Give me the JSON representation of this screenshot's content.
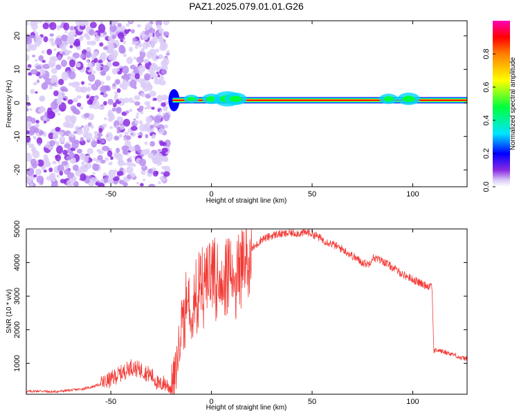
{
  "title": "PAZ1.2025.079.01.01.G26",
  "chart_data": [
    {
      "type": "heatmap",
      "xlabel": "Height of straight line (km)",
      "ylabel": "Frequency (Hz)",
      "xlim": [
        -92,
        127
      ],
      "ylim": [
        -25,
        24.5
      ],
      "xticks": [
        -50,
        0,
        50,
        100
      ],
      "yticks": [
        -20,
        -10,
        0,
        10,
        20
      ],
      "colorbar": {
        "label": "Normalized spectral amplitude",
        "range": [
          0,
          1
        ],
        "ticks": [
          0.0,
          0.2,
          0.4,
          0.6,
          0.8
        ],
        "tick_labels": [
          "0.0",
          "0.2",
          "0.4",
          "0.6",
          "0.8"
        ]
      },
      "features": {
        "noise_region_x": [
          -92,
          -20
        ],
        "noise_region_level": "0.0 to 0.2",
        "signal_line_x": [
          -20,
          127
        ],
        "signal_line_frequency_hz": 0.8,
        "signal_line_peak_level": 0.85
      }
    },
    {
      "type": "line",
      "xlabel": "Height of straight line (km)",
      "ylabel": "SNR (10 * v/v)",
      "xlim": [
        -92,
        127
      ],
      "ylim": [
        80,
        5000
      ],
      "xticks": [
        -50,
        0,
        50,
        100
      ],
      "yticks": [
        1000,
        2000,
        3000,
        4000,
        5000
      ],
      "color": "#f23a35",
      "series": [
        {
          "x": [
            -92,
            -85,
            -80,
            -75,
            -70,
            -65,
            -60,
            -55,
            -50,
            -47,
            -45,
            -43,
            -40,
            -38,
            -36,
            -34,
            -32,
            -30,
            -28,
            -26,
            -24,
            -22,
            -20,
            -18,
            -16,
            -15,
            -14,
            -12,
            -10,
            -8,
            -6,
            -4,
            -2,
            0,
            2,
            4,
            6,
            8,
            10,
            12,
            14,
            16,
            18,
            20,
            22,
            25,
            28,
            30,
            33,
            36,
            40,
            44,
            48,
            52,
            56,
            60,
            65,
            70,
            75,
            78,
            80,
            85,
            90,
            95,
            100,
            105,
            108,
            109.5,
            110.5,
            112,
            115,
            118,
            121,
            124,
            127
          ],
          "y": [
            160,
            180,
            150,
            170,
            200,
            230,
            290,
            380,
            520,
            640,
            700,
            760,
            900,
            850,
            820,
            780,
            700,
            650,
            520,
            330,
            420,
            360,
            240,
            650,
            1600,
            2200,
            2900,
            3000,
            3200,
            3400,
            3450,
            3500,
            3550,
            3700,
            3800,
            3650,
            3700,
            3850,
            4000,
            3800,
            3900,
            4100,
            4300,
            4400,
            4500,
            4700,
            4750,
            4800,
            4850,
            4850,
            4880,
            4870,
            4900,
            4800,
            4650,
            4550,
            4400,
            4200,
            4000,
            3950,
            4150,
            4050,
            3850,
            3650,
            3500,
            3350,
            3300,
            3350,
            1350,
            1400,
            1350,
            1300,
            1250,
            1150,
            1150
          ]
        }
      ]
    }
  ]
}
